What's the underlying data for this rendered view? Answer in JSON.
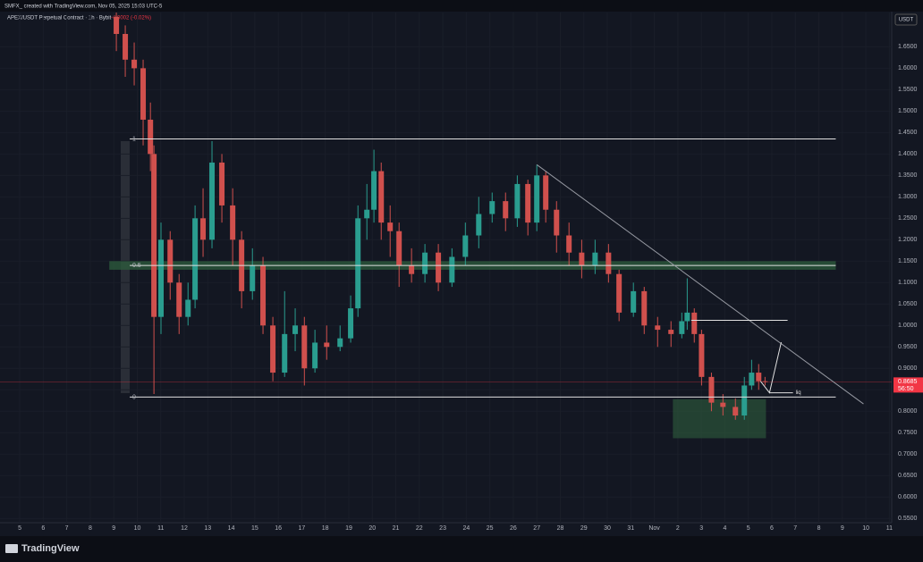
{
  "header": {
    "text": "SMFX_ created with TradingView.com, Nov 05, 2025 15:03 UTC-5"
  },
  "chart_data": {
    "type": "candlestick",
    "title": "APEX/USDT Perpetual Contract · 1h · Bybit",
    "change": "-0.0002 (-0.02%)",
    "currency": "USDT",
    "up_color": "#2a9d8f",
    "down_color": "#d0504d",
    "x": [
      4.11,
      4.49,
      4.87,
      5.25,
      5.56,
      5.71,
      6.01,
      6.4,
      6.78,
      7.16,
      7.46,
      7.8,
      8.18,
      8.6,
      9.06,
      9.44,
      9.9,
      10.35,
      10.77,
      11.27,
      11.72,
      12.11,
      12.56,
      13.06,
      13.63,
      14.08,
      14.39,
      14.77,
      15.07,
      15.38,
      15.76,
      16.14,
      16.67,
      17.24,
      17.81,
      18.39,
      18.96,
      19.53,
      20.1,
      20.67,
      21.17,
      21.62,
      22.0,
      22.38,
      22.84,
      23.37,
      23.91,
      24.48,
      25.05,
      25.5,
      26.11,
      26.57,
      27.14,
      27.71,
      28.17,
      28.4,
      28.7,
      29.01,
      29.43,
      29.92,
      30.45,
      30.83,
      31.14,
      31.44,
      31.71
    ],
    "open": [
      1.72,
      1.68,
      1.62,
      1.6,
      1.48,
      1.4,
      1.02,
      1.2,
      1.1,
      1.02,
      1.06,
      1.25,
      1.2,
      1.38,
      1.28,
      1.2,
      1.08,
      1.14,
      1.0,
      0.89,
      0.98,
      1.0,
      0.9,
      0.96,
      0.95,
      0.97,
      1.04,
      1.25,
      1.27,
      1.36,
      1.24,
      1.22,
      1.14,
      1.12,
      1.17,
      1.1,
      1.16,
      1.21,
      1.26,
      1.29,
      1.25,
      1.33,
      1.24,
      1.35,
      1.27,
      1.21,
      1.17,
      1.14,
      1.17,
      1.12,
      1.03,
      1.08,
      1.0,
      0.99,
      0.98,
      1.01,
      1.03,
      0.98,
      0.88,
      0.82,
      0.81,
      0.79,
      0.86,
      0.89,
      0.87
    ],
    "high": [
      1.73,
      1.7,
      1.66,
      1.62,
      1.52,
      1.42,
      1.24,
      1.22,
      1.12,
      1.1,
      1.28,
      1.32,
      1.43,
      1.4,
      1.32,
      1.22,
      1.18,
      1.16,
      1.02,
      1.08,
      1.04,
      1.02,
      0.99,
      1.0,
      1.0,
      1.07,
      1.28,
      1.33,
      1.41,
      1.38,
      1.28,
      1.24,
      1.18,
      1.19,
      1.19,
      1.18,
      1.24,
      1.3,
      1.31,
      1.31,
      1.35,
      1.34,
      1.375,
      1.36,
      1.29,
      1.24,
      1.2,
      1.2,
      1.19,
      1.13,
      1.1,
      1.09,
      1.02,
      1.01,
      1.03,
      1.11,
      1.04,
      0.99,
      0.89,
      0.84,
      0.83,
      0.88,
      0.92,
      0.91,
      0.88
    ],
    "low": [
      1.64,
      1.58,
      1.56,
      1.42,
      1.36,
      0.84,
      0.98,
      1.06,
      0.98,
      1.0,
      1.04,
      1.16,
      1.18,
      1.24,
      1.14,
      1.04,
      1.06,
      0.98,
      0.87,
      0.88,
      0.94,
      0.86,
      0.89,
      0.92,
      0.94,
      0.96,
      1.02,
      1.2,
      1.24,
      1.2,
      1.16,
      1.09,
      1.1,
      1.1,
      1.08,
      1.09,
      1.14,
      1.18,
      1.24,
      1.22,
      1.23,
      1.21,
      1.22,
      1.24,
      1.17,
      1.14,
      1.11,
      1.12,
      1.1,
      1.01,
      1.02,
      0.98,
      0.95,
      0.95,
      0.97,
      0.99,
      0.96,
      0.86,
      0.8,
      0.79,
      0.78,
      0.78,
      0.85,
      0.85,
      0.86
    ],
    "close": [
      1.68,
      1.62,
      1.6,
      1.48,
      1.4,
      1.02,
      1.2,
      1.1,
      1.02,
      1.06,
      1.25,
      1.2,
      1.38,
      1.28,
      1.2,
      1.08,
      1.14,
      1.0,
      0.89,
      0.98,
      1.0,
      0.9,
      0.96,
      0.95,
      0.97,
      1.04,
      1.25,
      1.27,
      1.36,
      1.24,
      1.22,
      1.14,
      1.12,
      1.17,
      1.1,
      1.16,
      1.21,
      1.26,
      1.29,
      1.25,
      1.33,
      1.24,
      1.35,
      1.27,
      1.21,
      1.17,
      1.14,
      1.17,
      1.12,
      1.03,
      1.08,
      1.0,
      0.99,
      0.98,
      1.01,
      1.03,
      0.98,
      0.88,
      0.82,
      0.81,
      0.79,
      0.86,
      0.89,
      0.87,
      0.8685
    ],
    "xlim": [
      -0.84,
      37.1
    ],
    "xticks": [
      {
        "value": 0,
        "label": "5"
      },
      {
        "value": 1,
        "label": "6"
      },
      {
        "value": 2,
        "label": "7"
      },
      {
        "value": 3,
        "label": "8"
      },
      {
        "value": 4,
        "label": "9"
      },
      {
        "value": 5,
        "label": "10"
      },
      {
        "value": 6,
        "label": "11"
      },
      {
        "value": 7,
        "label": "12"
      },
      {
        "value": 8,
        "label": "13"
      },
      {
        "value": 9,
        "label": "14"
      },
      {
        "value": 10,
        "label": "15"
      },
      {
        "value": 11,
        "label": "16"
      },
      {
        "value": 12,
        "label": "17"
      },
      {
        "value": 13,
        "label": "18"
      },
      {
        "value": 14,
        "label": "19"
      },
      {
        "value": 15,
        "label": "20"
      },
      {
        "value": 16,
        "label": "21"
      },
      {
        "value": 17,
        "label": "22"
      },
      {
        "value": 18,
        "label": "23"
      },
      {
        "value": 19,
        "label": "24"
      },
      {
        "value": 20,
        "label": "25"
      },
      {
        "value": 21,
        "label": "26"
      },
      {
        "value": 22,
        "label": "27"
      },
      {
        "value": 23,
        "label": "28"
      },
      {
        "value": 24,
        "label": "29"
      },
      {
        "value": 25,
        "label": "30"
      },
      {
        "value": 26,
        "label": "31"
      },
      {
        "value": 27,
        "label": "Nov"
      },
      {
        "value": 28,
        "label": "2"
      },
      {
        "value": 29,
        "label": "3"
      },
      {
        "value": 30,
        "label": "4"
      },
      {
        "value": 31,
        "label": "5"
      },
      {
        "value": 32,
        "label": "6"
      },
      {
        "value": 33,
        "label": "7"
      },
      {
        "value": 34,
        "label": "8"
      },
      {
        "value": 35,
        "label": "9"
      },
      {
        "value": 36,
        "label": "10"
      },
      {
        "value": 37,
        "label": "11"
      }
    ],
    "ylim": [
      0.54,
      1.73
    ],
    "yticks": [
      {
        "value": 0.55,
        "label": "0.5500"
      },
      {
        "value": 0.6,
        "label": "0.6000"
      },
      {
        "value": 0.65,
        "label": "0.6500"
      },
      {
        "value": 0.7,
        "label": "0.7000"
      },
      {
        "value": 0.75,
        "label": "0.7500"
      },
      {
        "value": 0.8,
        "label": "0.8000"
      },
      {
        "value": 0.85,
        "label": "0.8500"
      },
      {
        "value": 0.9,
        "label": "0.9000"
      },
      {
        "value": 0.95,
        "label": "0.9500"
      },
      {
        "value": 1.0,
        "label": "1.0000"
      },
      {
        "value": 1.05,
        "label": "1.0500"
      },
      {
        "value": 1.1,
        "label": "1.1000"
      },
      {
        "value": 1.15,
        "label": "1.1500"
      },
      {
        "value": 1.2,
        "label": "1.2000"
      },
      {
        "value": 1.25,
        "label": "1.2500"
      },
      {
        "value": 1.3,
        "label": "1.3000"
      },
      {
        "value": 1.35,
        "label": "1.3500"
      },
      {
        "value": 1.4,
        "label": "1.4000"
      },
      {
        "value": 1.45,
        "label": "1.4500"
      },
      {
        "value": 1.5,
        "label": "1.5000"
      },
      {
        "value": 1.55,
        "label": "1.5500"
      },
      {
        "value": 1.6,
        "label": "1.6000"
      },
      {
        "value": 1.65,
        "label": "1.6500"
      }
    ],
    "last_price": 0.8685,
    "countdown": "56:50",
    "annotations": {
      "fib": {
        "x": [
          4.68,
          34.72
        ],
        "levels": [
          {
            "value": 1.435,
            "label": "1"
          },
          {
            "value": 1.14,
            "label": "0.5"
          },
          {
            "value": 0.833,
            "label": "0"
          }
        ]
      },
      "zone": {
        "x": [
          3.81,
          34.72
        ],
        "low": 1.13,
        "high": 1.15
      },
      "box": {
        "x": [
          27.79,
          31.75
        ],
        "low": 0.737,
        "high": 0.828
      },
      "trendline": {
        "x": [
          22.0,
          35.9
        ],
        "y": [
          1.375,
          0.817
        ]
      },
      "level": {
        "x": [
          28.57,
          32.67
        ],
        "y": [
          1.012,
          1.012
        ]
      },
      "liq": {
        "x": [
          31.9,
          32.9
        ],
        "y": [
          0.843,
          0.843
        ],
        "label": "liq"
      },
      "projection": {
        "x": [
          31.52,
          31.9,
          32.4
        ],
        "y": [
          0.87,
          0.843,
          0.961
        ]
      }
    }
  },
  "footer": {
    "brand": "TradingView"
  }
}
